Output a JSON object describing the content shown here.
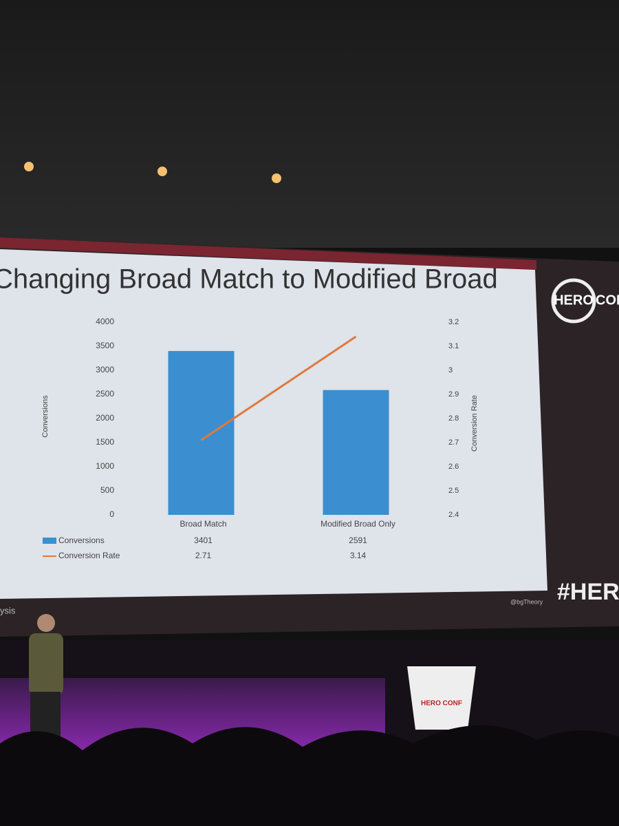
{
  "chart_data": {
    "type": "bar",
    "title": "Changing Broad Match to Modified Broad",
    "categories": [
      "Broad Match",
      "Modified Broad Only"
    ],
    "series": [
      {
        "name": "Conversions",
        "color": "#3b8fd1",
        "values": [
          3401,
          2591
        ]
      },
      {
        "name": "Conversion Rate",
        "color": "#e0793a",
        "values": [
          2.71,
          3.14
        ],
        "axis": "y2",
        "type": "line"
      }
    ],
    "ylabel": "Conversions",
    "y2label": "Conversion Rate",
    "ylim": [
      0,
      4000
    ],
    "yticks": [
      0,
      500,
      1000,
      1500,
      2000,
      2500,
      3000,
      3500,
      4000
    ],
    "y2lim": [
      2.4,
      3.2
    ],
    "y2ticks": [
      2.4,
      2.5,
      2.6,
      2.7,
      2.8,
      2.9,
      3,
      3.1,
      3.2
    ],
    "grid": false,
    "data_table": true
  },
  "branding": {
    "logo_top": "HERO",
    "logo_bottom": "CONF",
    "hashtag": "#HEROC",
    "twitter": "@bgTheory",
    "footer": "ysis",
    "podium": "HERO CONF"
  }
}
